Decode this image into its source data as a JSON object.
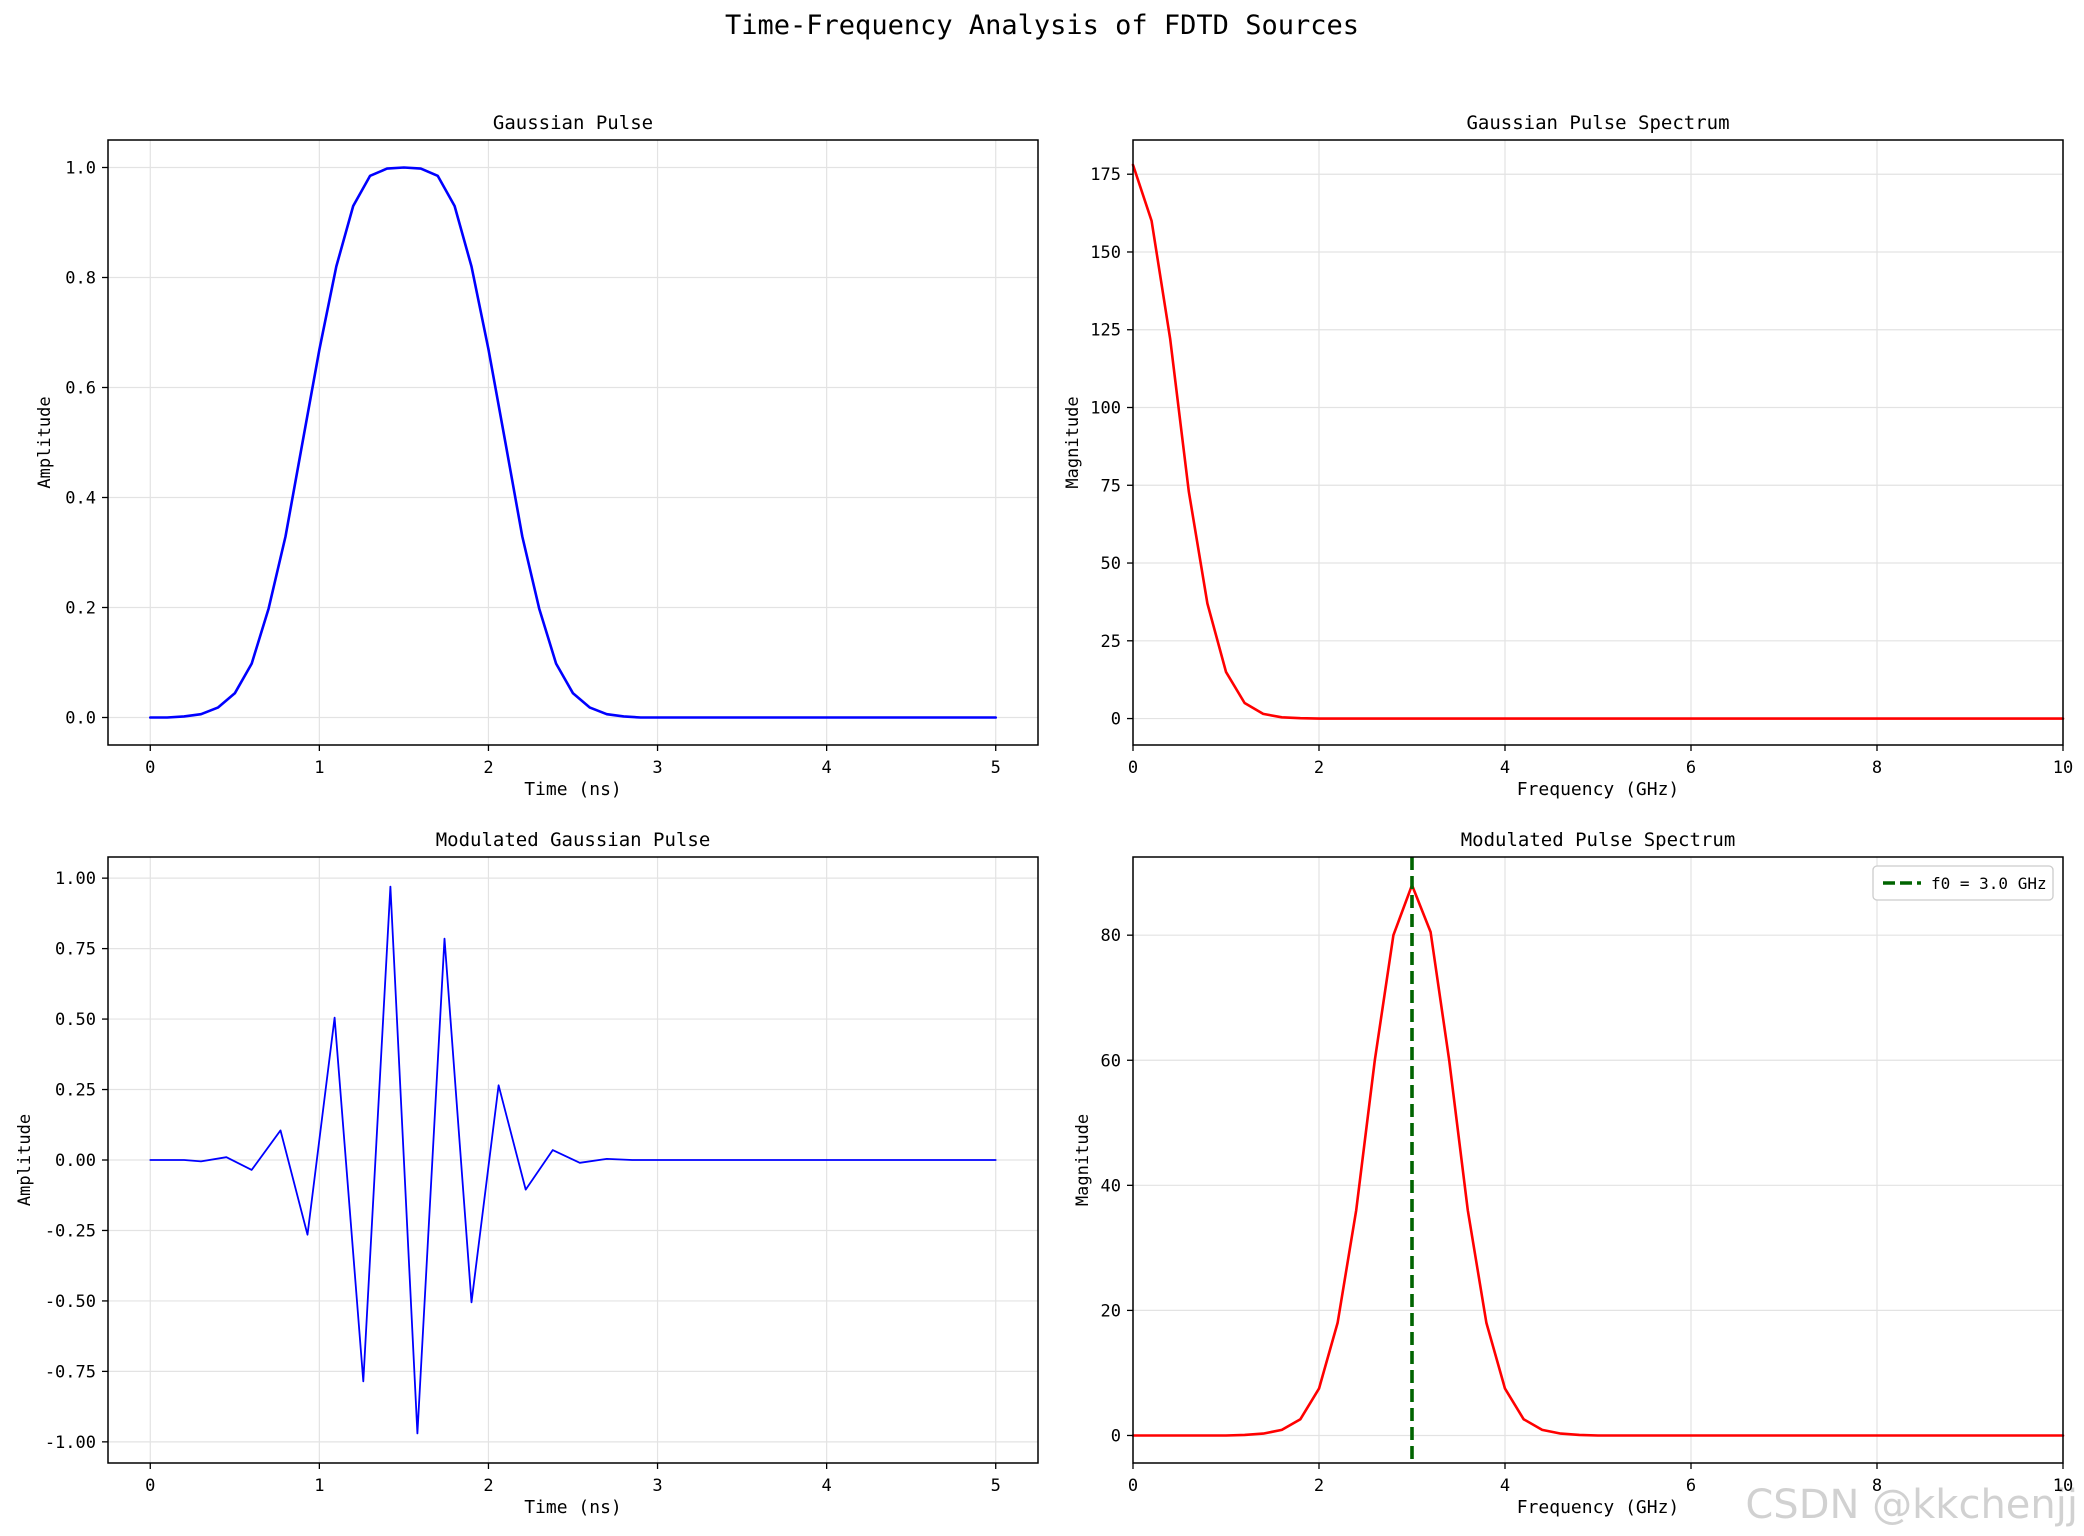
{
  "figure": {
    "suptitle": "Time-Frequency Analysis of FDTD Sources",
    "watermark": "CSDN @kkchenjj"
  },
  "chart_data": [
    {
      "id": "gaussian-pulse",
      "type": "line",
      "title": "Gaussian Pulse",
      "xlabel": "Time (ns)",
      "ylabel": "Amplitude",
      "xlim": [
        -0.25,
        5.25
      ],
      "ylim": [
        -0.05,
        1.05
      ],
      "xticks": [
        0,
        1,
        2,
        3,
        4,
        5
      ],
      "xtick_labels": [
        "0",
        "1",
        "2",
        "3",
        "4",
        "5"
      ],
      "yticks": [
        0.0,
        0.2,
        0.4,
        0.6,
        0.8,
        1.0
      ],
      "ytick_labels": [
        "0.0",
        "0.2",
        "0.4",
        "0.6",
        "0.8",
        "1.0"
      ],
      "grid": true,
      "series": [
        {
          "name": "gaussian",
          "color": "#0000ff",
          "stroke": 2.6,
          "x": [
            0.0,
            0.1,
            0.2,
            0.3,
            0.4,
            0.5,
            0.6,
            0.7,
            0.8,
            0.9,
            1.0,
            1.1,
            1.2,
            1.3,
            1.4,
            1.5,
            1.6,
            1.7,
            1.8,
            1.9,
            2.0,
            2.1,
            2.2,
            2.3,
            2.4,
            2.5,
            2.6,
            2.7,
            2.8,
            2.9,
            3.0,
            3.5,
            4.0,
            4.5,
            5.0
          ],
          "y": [
            0.0,
            0.0,
            0.002,
            0.006,
            0.018,
            0.044,
            0.098,
            0.198,
            0.329,
            0.5,
            0.669,
            0.82,
            0.93,
            0.985,
            0.998,
            1.0,
            0.998,
            0.985,
            0.93,
            0.82,
            0.669,
            0.5,
            0.329,
            0.198,
            0.098,
            0.044,
            0.018,
            0.006,
            0.002,
            0.0,
            0.0,
            0.0,
            0.0,
            0.0,
            0.0
          ]
        }
      ]
    },
    {
      "id": "gaussian-spectrum",
      "type": "line",
      "title": "Gaussian Pulse Spectrum",
      "xlabel": "Frequency (GHz)",
      "ylabel": "Magnitude",
      "xlim": [
        0,
        10
      ],
      "ylim": [
        -8.5,
        186
      ],
      "xticks": [
        0,
        2,
        4,
        6,
        8,
        10
      ],
      "xtick_labels": [
        "0",
        "2",
        "4",
        "6",
        "8",
        "10"
      ],
      "yticks": [
        0,
        25,
        50,
        75,
        100,
        125,
        150,
        175
      ],
      "ytick_labels": [
        "0",
        "25",
        "50",
        "75",
        "100",
        "125",
        "150",
        "175"
      ],
      "grid": true,
      "series": [
        {
          "name": "spectrum",
          "color": "#ff0000",
          "stroke": 2.6,
          "x": [
            0,
            0.2,
            0.4,
            0.6,
            0.8,
            1.0,
            1.2,
            1.4,
            1.6,
            1.8,
            2.0,
            3.0,
            4.0,
            6.0,
            8.0,
            10.0
          ],
          "y": [
            178,
            160,
            122,
            73,
            37,
            15,
            5,
            1.5,
            0.4,
            0.1,
            0,
            0,
            0,
            0,
            0,
            0
          ]
        }
      ]
    },
    {
      "id": "modulated-pulse",
      "type": "line",
      "title": "Modulated Gaussian Pulse",
      "xlabel": "Time (ns)",
      "ylabel": "Amplitude",
      "xlim": [
        -0.25,
        5.25
      ],
      "ylim": [
        -1.075,
        1.075
      ],
      "xticks": [
        0,
        1,
        2,
        3,
        4,
        5
      ],
      "xtick_labels": [
        "0",
        "1",
        "2",
        "3",
        "4",
        "5"
      ],
      "yticks": [
        -1.0,
        -0.75,
        -0.5,
        -0.25,
        0.0,
        0.25,
        0.5,
        0.75,
        1.0
      ],
      "ytick_labels": [
        "-1.00",
        "-0.75",
        "-0.50",
        "-0.25",
        "0.00",
        "0.25",
        "0.50",
        "0.75",
        "1.00"
      ],
      "grid": true,
      "series": [
        {
          "name": "modulated",
          "color": "#0000ff",
          "stroke": 1.8,
          "x": [
            0.0,
            0.2,
            0.3,
            0.45,
            0.6,
            0.77,
            0.93,
            1.09,
            1.26,
            1.42,
            1.58,
            1.74,
            1.9,
            2.06,
            2.22,
            2.38,
            2.54,
            2.7,
            2.85,
            3.0,
            4.0,
            5.0
          ],
          "y": [
            0.0,
            0.0,
            -0.005,
            0.01,
            -0.035,
            0.105,
            -0.265,
            0.505,
            -0.785,
            0.97,
            -0.97,
            0.785,
            -0.505,
            0.265,
            -0.105,
            0.035,
            -0.01,
            0.004,
            0.0,
            0.0,
            0.0,
            0.0
          ]
        }
      ]
    },
    {
      "id": "modulated-spectrum",
      "type": "line",
      "title": "Modulated Pulse Spectrum",
      "xlabel": "Frequency (GHz)",
      "ylabel": "Magnitude",
      "xlim": [
        0,
        10
      ],
      "ylim": [
        -4.4,
        92.5
      ],
      "xticks": [
        0,
        2,
        4,
        6,
        8,
        10
      ],
      "xtick_labels": [
        "0",
        "2",
        "4",
        "6",
        "8",
        "10"
      ],
      "yticks": [
        0,
        20,
        40,
        60,
        80
      ],
      "ytick_labels": [
        "0",
        "20",
        "40",
        "60",
        "80"
      ],
      "grid": true,
      "vline": {
        "x": 3.0,
        "color": "#006400",
        "label": "f0 = 3.0 GHz"
      },
      "legend": {
        "position": "top-right",
        "entries": [
          "f0 = 3.0 GHz"
        ]
      },
      "series": [
        {
          "name": "spectrum",
          "color": "#ff0000",
          "stroke": 2.6,
          "x": [
            0,
            1.0,
            1.2,
            1.4,
            1.6,
            1.8,
            2.0,
            2.2,
            2.4,
            2.6,
            2.8,
            3.0,
            3.2,
            3.4,
            3.6,
            3.8,
            4.0,
            4.2,
            4.4,
            4.6,
            4.8,
            5.0,
            6,
            8,
            10
          ],
          "y": [
            0,
            0,
            0.1,
            0.3,
            0.9,
            2.6,
            7.5,
            18,
            36,
            60,
            80,
            88,
            80.5,
            60,
            36,
            18,
            7.5,
            2.6,
            0.9,
            0.3,
            0.1,
            0,
            0,
            0,
            0
          ]
        }
      ]
    }
  ]
}
